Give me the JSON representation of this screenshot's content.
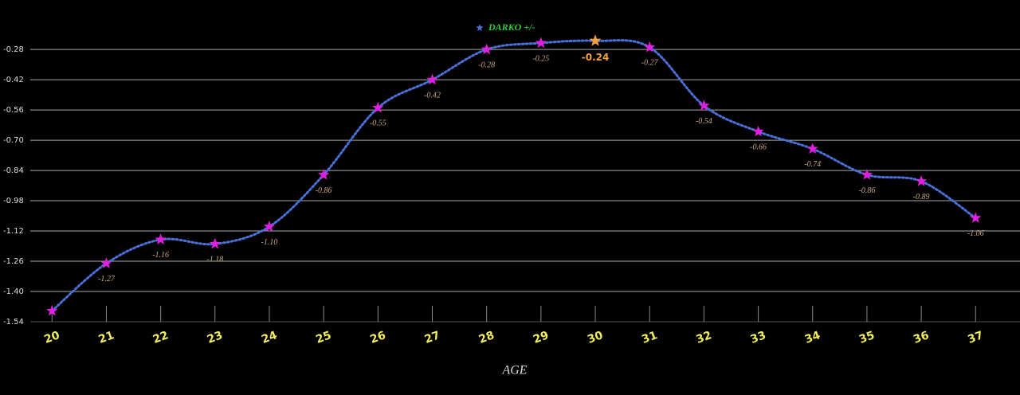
{
  "chart_data": {
    "type": "line",
    "x_label": "AGE",
    "x": [
      20,
      21,
      22,
      23,
      24,
      25,
      26,
      27,
      28,
      29,
      30,
      31,
      32,
      33,
      34,
      35,
      36,
      37
    ],
    "series": [
      {
        "name": "DARKO +/-",
        "color": "#4a70d8",
        "name_color": "#33cc33",
        "marker_color": "#e020e0",
        "values": [
          -1.49,
          -1.27,
          -1.16,
          -1.18,
          -1.1,
          -0.86,
          -0.55,
          -0.42,
          -0.28,
          -0.25,
          -0.24,
          -0.27,
          -0.54,
          -0.66,
          -0.74,
          -0.86,
          -0.89,
          -1.06
        ],
        "value_labels": [
          null,
          "-1.27",
          "-1.16",
          "-1.18",
          "-1.10",
          "-0.86",
          "-0.55",
          "-0.42",
          "-0.28",
          "-0.25",
          "-0.24",
          "-0.27",
          "-0.54",
          "-0.66",
          "-0.74",
          "-0.86",
          "-0.89",
          "-1.06"
        ],
        "highlight_index": 10,
        "highlight_color": "#f0a040"
      }
    ],
    "xlim": [
      19.6,
      37.7
    ],
    "xticks": [
      20,
      21,
      22,
      23,
      24,
      25,
      26,
      27,
      28,
      29,
      30,
      31,
      32,
      33,
      34,
      35,
      36,
      37
    ],
    "ylim": [
      -1.54,
      -0.18
    ],
    "yticks": [
      -0.28,
      -0.42,
      -0.56,
      {
        "value": -0.7,
        "label": "-0.70"
      },
      -0.84,
      -0.98,
      -1.12,
      -1.26,
      {
        "value": -1.4,
        "label": "-1.40"
      },
      -1.54
    ],
    "grid": true
  }
}
